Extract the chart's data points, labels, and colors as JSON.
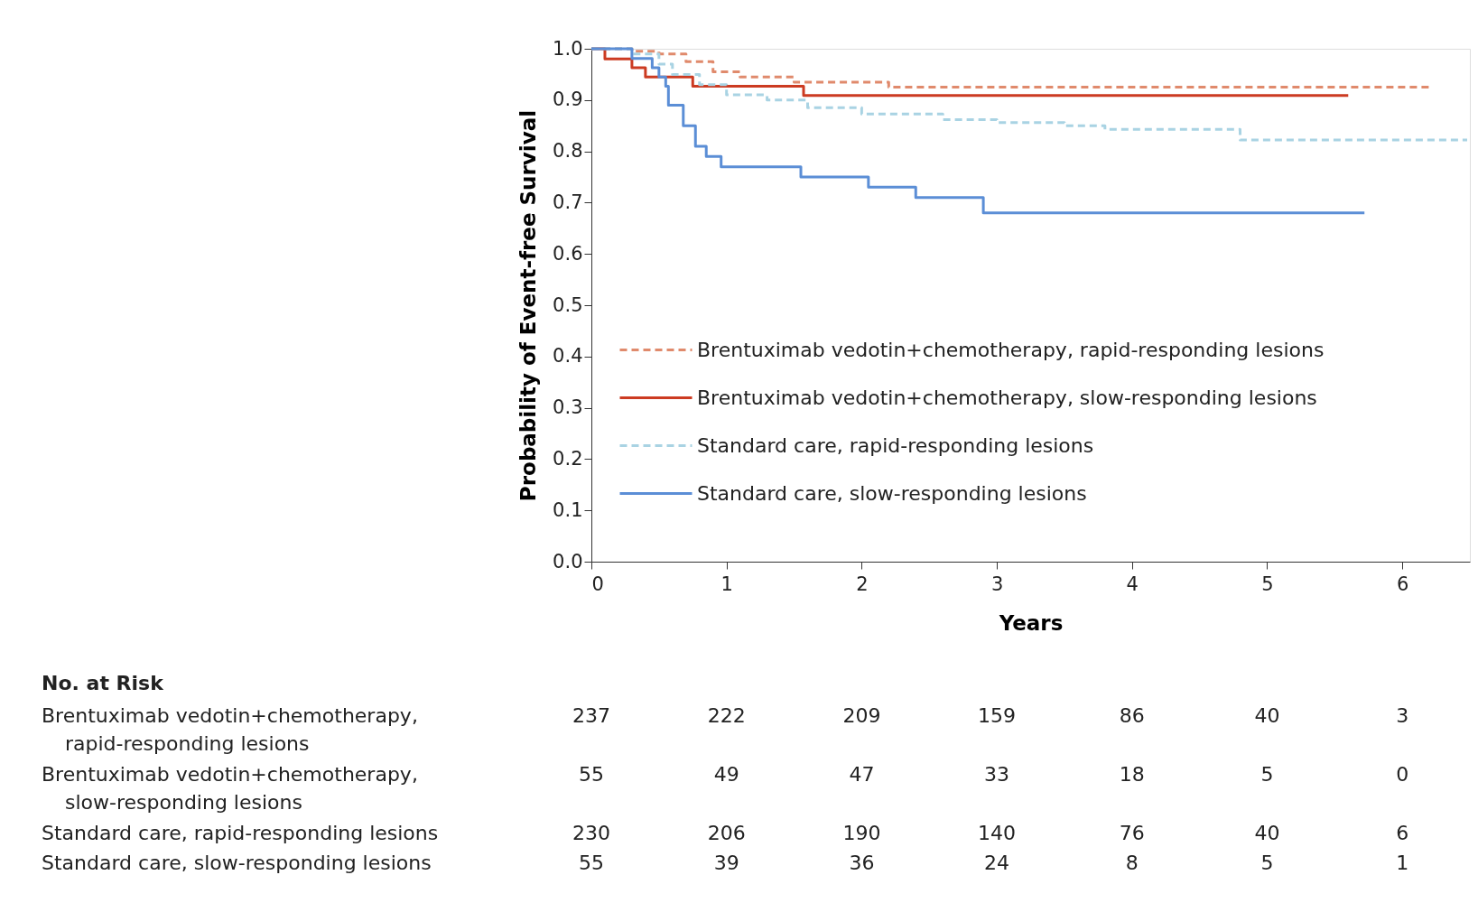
{
  "chart_data": {
    "type": "step",
    "xlabel": "Years",
    "ylabel": "Probability of Event-free Survival",
    "xlim": [
      0,
      6.5
    ],
    "xticks": [
      0,
      1,
      2,
      3,
      4,
      5,
      6
    ],
    "ylim": [
      0,
      1
    ],
    "yticks": [
      {
        "value": 0,
        "label": "0.0"
      },
      {
        "value": 0.1,
        "label": "0.1"
      },
      {
        "value": 0.2,
        "label": "0.2"
      },
      {
        "value": 0.3,
        "label": "0.3"
      },
      {
        "value": 0.4,
        "label": "0.4"
      },
      {
        "value": 0.5,
        "label": "0.5"
      },
      {
        "value": 0.6,
        "label": "0.6"
      },
      {
        "value": 0.7,
        "label": "0.7"
      },
      {
        "value": 0.8,
        "label": "0.8"
      },
      {
        "value": 0.9,
        "label": "0.9"
      },
      {
        "value": 1,
        "label": "1.0"
      }
    ],
    "grid": false,
    "legend": "left",
    "marker": "none",
    "series": [
      {
        "name": "Brentuximab vedotin+chemotherapy, rapid-responding lesions",
        "color": "#e08a6c",
        "line_style": "dashed",
        "x": [
          0,
          0.3,
          0.5,
          0.7,
          0.9,
          1.1,
          1.5,
          2.2,
          6.2
        ],
        "values": [
          1.0,
          0.995,
          0.99,
          0.975,
          0.955,
          0.945,
          0.935,
          0.925,
          0.925
        ]
      },
      {
        "name": "Brentuximab vedotin+chemotherapy, slow-responding lesions",
        "color": "#cc3b22",
        "line_style": "solid",
        "x": [
          0,
          0.1,
          0.3,
          0.4,
          0.75,
          1.57,
          5.6
        ],
        "values": [
          1.0,
          0.98,
          0.963,
          0.945,
          0.927,
          0.909,
          0.909
        ]
      },
      {
        "name": "Standard care, rapid-responding lesions",
        "color": "#a9d3e3",
        "line_style": "dashed",
        "x": [
          0,
          0.3,
          0.5,
          0.6,
          0.8,
          1.0,
          1.3,
          1.6,
          2.0,
          2.6,
          3.0,
          3.5,
          3.8,
          4.8,
          6.48
        ],
        "values": [
          1.0,
          0.99,
          0.97,
          0.95,
          0.93,
          0.91,
          0.9,
          0.885,
          0.873,
          0.862,
          0.856,
          0.85,
          0.843,
          0.822,
          0.822
        ]
      },
      {
        "name": "Standard care, slow-responding lesions",
        "color": "#5b8ed6",
        "line_style": "solid",
        "x": [
          0,
          0.3,
          0.45,
          0.5,
          0.55,
          0.57,
          0.68,
          0.77,
          0.85,
          0.96,
          1.55,
          2.05,
          2.4,
          2.9,
          5.72
        ],
        "values": [
          1.0,
          0.981,
          0.963,
          0.945,
          0.927,
          0.89,
          0.85,
          0.81,
          0.79,
          0.77,
          0.75,
          0.73,
          0.71,
          0.68,
          0.68
        ]
      }
    ],
    "annotations": [
      "No. at Risk",
      "Brentuximab vedotin+chemotherapy, rapid-responding lesions",
      "237",
      "222",
      "209",
      "159",
      "86",
      "40",
      "3",
      "Brentuximab vedotin+chemotherapy, slow-responding lesions",
      "55",
      "49",
      "47",
      "33",
      "18",
      "5",
      "0",
      "Standard care, rapid-responding lesions",
      "230",
      "206",
      "190",
      "140",
      "76",
      "40",
      "6",
      "Standard care, slow-responding lesions",
      "55",
      "39",
      "36",
      "24",
      "8",
      "5",
      "1"
    ]
  }
}
